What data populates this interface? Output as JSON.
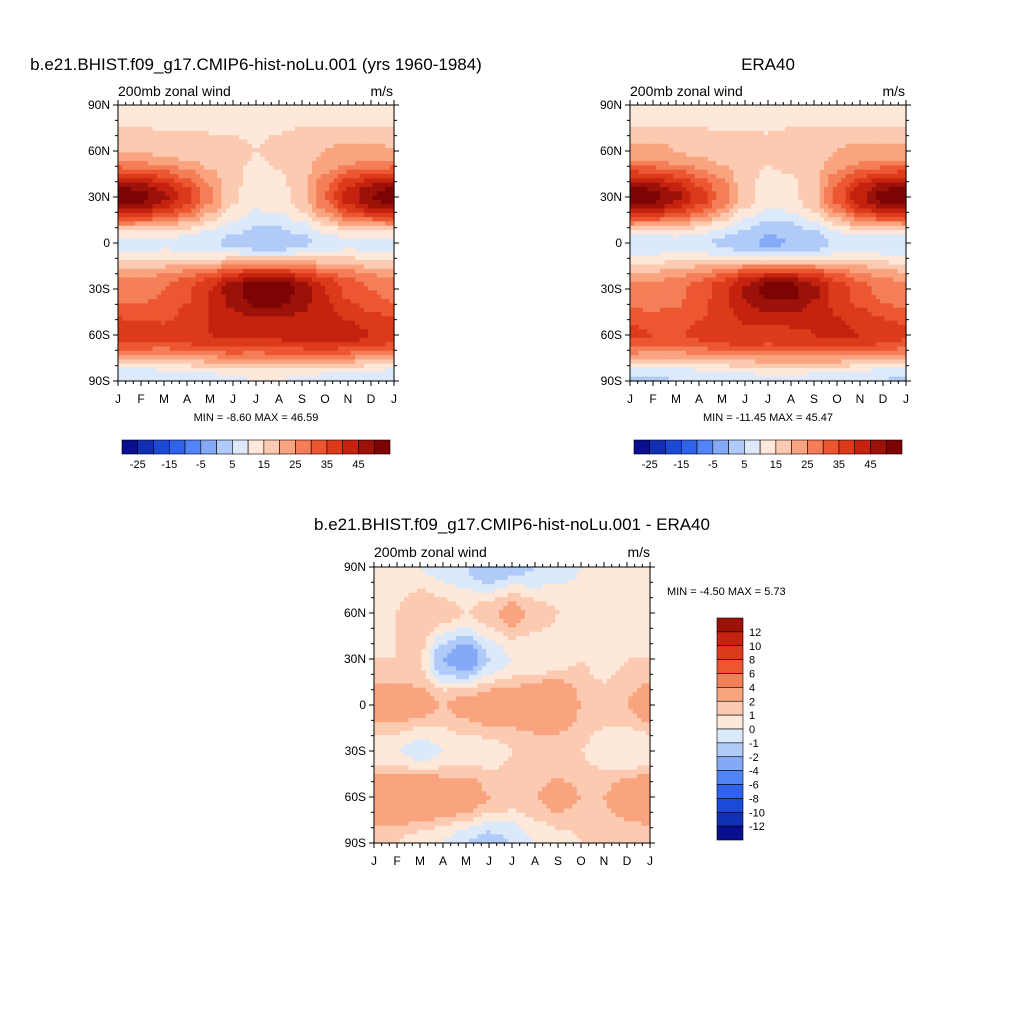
{
  "palettes": {
    "fields": [
      "#0a0f8f",
      "#1230b4",
      "#1c49d6",
      "#2f63ee",
      "#5384f6",
      "#84aaf7",
      "#b1cbf9",
      "#dce9fb",
      "#fde8da",
      "#fccab0",
      "#f9a47f",
      "#f47e57",
      "#ec5732",
      "#dd3a1c",
      "#c5230f",
      "#9c1208",
      "#7c0404"
    ],
    "diff": [
      "#0a0f8f",
      "#1230b4",
      "#1c49d6",
      "#2f63ee",
      "#5384f6",
      "#84aaf7",
      "#b1cbf9",
      "#dce9fb",
      "#fde8da",
      "#fccab0",
      "#f9a47f",
      "#f47e57",
      "#ec5732",
      "#dd3a1c",
      "#c5230f",
      "#9c1208"
    ]
  },
  "panels": [
    {
      "id": "model",
      "title": "b.e21.BHIST.f09_g17.CMIP6-hist-noLu.001 (yrs 1960-1984)",
      "left_label": "200mb zonal wind",
      "right_label": "m/s",
      "stats": "MIN =  -8.60 MAX =  46.59",
      "colorbar_labels": [
        "-25",
        "-15",
        "-5",
        "5",
        "15",
        "25",
        "35",
        "45"
      ]
    },
    {
      "id": "era40",
      "title": "ERA40",
      "left_label": "200mb zonal wind",
      "right_label": "m/s",
      "stats": "MIN = -11.45 MAX =  45.47",
      "colorbar_labels": [
        "-25",
        "-15",
        "-5",
        "5",
        "15",
        "25",
        "35",
        "45"
      ]
    },
    {
      "id": "diff",
      "title": "b.e21.BHIST.f09_g17.CMIP6-hist-noLu.001 - ERA40",
      "left_label": "200mb zonal wind",
      "right_label": "m/s",
      "stats": "MIN =  -4.50 MAX =   5.73",
      "colorbar_labels": [
        "12",
        "10",
        "8",
        "6",
        "4",
        "2",
        "1",
        "0",
        "-1",
        "-2",
        "-4",
        "-6",
        "-8",
        "-10",
        "-12"
      ]
    }
  ],
  "chart_data": [
    {
      "type": "heatmap",
      "title": "b.e21.BHIST.f09_g17.CMIP6-hist-noLu.001 (yrs 1960-1984)",
      "xlabel": "",
      "ylabel": "",
      "x_ticks": [
        "J",
        "F",
        "M",
        "A",
        "M",
        "J",
        "J",
        "A",
        "S",
        "O",
        "N",
        "D",
        "J"
      ],
      "y_ticks": [
        "90N",
        "60N",
        "30N",
        "0",
        "30S",
        "60S",
        "90S"
      ],
      "units": "m/s",
      "x": [
        "Jan",
        "Feb",
        "Mar",
        "Apr",
        "May",
        "Jun",
        "Jul",
        "Aug",
        "Sep",
        "Oct",
        "Nov",
        "Dec",
        "Jan"
      ],
      "y": [
        90,
        60,
        30,
        0,
        -30,
        -60,
        -90
      ],
      "z": [
        [
          0,
          0,
          0,
          1,
          1,
          2,
          3,
          3,
          2,
          1,
          1,
          0,
          0
        ],
        [
          10,
          10,
          9,
          8,
          7,
          6,
          5,
          6,
          8,
          10,
          11,
          11,
          10
        ],
        [
          44,
          42,
          36,
          27,
          16,
          6,
          2,
          3,
          8,
          20,
          32,
          40,
          44
        ],
        [
          -2,
          -2,
          -1,
          -2,
          -4,
          -6,
          -8,
          -8,
          -6,
          -3,
          -1,
          -2,
          -2
        ],
        [
          18,
          18,
          20,
          24,
          30,
          38,
          45,
          44,
          38,
          30,
          24,
          20,
          18
        ],
        [
          28,
          27,
          26,
          28,
          30,
          31,
          30,
          31,
          32,
          33,
          32,
          30,
          28
        ],
        [
          -5,
          -5,
          -4,
          -3,
          -2,
          -1,
          0,
          0,
          -1,
          -2,
          -3,
          -4,
          -5
        ]
      ],
      "levels": [
        -35,
        -30,
        -25,
        -20,
        -15,
        -10,
        -5,
        0,
        5,
        10,
        15,
        20,
        25,
        30,
        35,
        40,
        45
      ]
    },
    {
      "type": "heatmap",
      "title": "ERA40",
      "xlabel": "",
      "ylabel": "",
      "x_ticks": [
        "J",
        "F",
        "M",
        "A",
        "M",
        "J",
        "J",
        "A",
        "S",
        "O",
        "N",
        "D",
        "J"
      ],
      "y_ticks": [
        "90N",
        "60N",
        "30N",
        "0",
        "30S",
        "60S",
        "90S"
      ],
      "units": "m/s",
      "x": [
        "Jan",
        "Feb",
        "Mar",
        "Apr",
        "May",
        "Jun",
        "Jul",
        "Aug",
        "Sep",
        "Oct",
        "Nov",
        "Dec",
        "Jan"
      ],
      "y": [
        90,
        60,
        30,
        0,
        -30,
        -60,
        -90
      ],
      "z": [
        [
          0,
          0,
          0,
          1,
          1,
          2,
          3,
          3,
          2,
          1,
          1,
          0,
          0
        ],
        [
          11,
          11,
          10,
          9,
          8,
          7,
          6,
          7,
          8,
          10,
          11,
          11,
          11
        ],
        [
          44,
          42,
          36,
          28,
          18,
          7,
          2,
          3,
          9,
          22,
          34,
          42,
          44
        ],
        [
          -3,
          -3,
          -2,
          -3,
          -6,
          -8,
          -11,
          -10,
          -8,
          -4,
          -2,
          -3,
          -3
        ],
        [
          16,
          16,
          18,
          22,
          28,
          36,
          42,
          42,
          36,
          28,
          22,
          18,
          16
        ],
        [
          26,
          25,
          24,
          26,
          28,
          29,
          28,
          29,
          30,
          31,
          30,
          28,
          26
        ],
        [
          -6,
          -6,
          -5,
          -4,
          -3,
          -2,
          -1,
          -1,
          -2,
          -3,
          -4,
          -5,
          -6
        ]
      ],
      "levels": [
        -35,
        -30,
        -25,
        -20,
        -15,
        -10,
        -5,
        0,
        5,
        10,
        15,
        20,
        25,
        30,
        35,
        40,
        45
      ]
    },
    {
      "type": "heatmap",
      "title": "b.e21.BHIST.f09_g17.CMIP6-hist-noLu.001 - ERA40",
      "xlabel": "",
      "ylabel": "",
      "x_ticks": [
        "J",
        "F",
        "M",
        "A",
        "M",
        "J",
        "J",
        "A",
        "S",
        "O",
        "N",
        "D",
        "J"
      ],
      "y_ticks": [
        "90N",
        "60N",
        "30N",
        "0",
        "30S",
        "60S",
        "90S"
      ],
      "units": "m/s",
      "x": [
        "Jan",
        "Feb",
        "Mar",
        "Apr",
        "May",
        "Jun",
        "Jul",
        "Aug",
        "Sep",
        "Oct",
        "Nov",
        "Dec",
        "Jan"
      ],
      "y": [
        90,
        60,
        30,
        0,
        -30,
        -60,
        -90
      ],
      "z": [
        [
          0,
          0,
          0,
          -0.5,
          -1,
          -2,
          -1.5,
          -1,
          -0.5,
          0,
          0,
          0,
          0
        ],
        [
          0.5,
          1,
          2,
          1.5,
          1,
          1.5,
          2.5,
          1.5,
          1,
          0.5,
          0.5,
          1,
          0.5
        ],
        [
          1,
          1,
          1,
          -2,
          -3,
          -1,
          0,
          0,
          0.5,
          1,
          0.5,
          1,
          1
        ],
        [
          3,
          3,
          2.5,
          2,
          2.5,
          3,
          3,
          4,
          4,
          2,
          1.5,
          2,
          3
        ],
        [
          0,
          0,
          -0.5,
          0,
          0.5,
          0.5,
          1,
          1,
          1,
          1,
          0.5,
          0,
          0
        ],
        [
          4,
          4,
          4,
          3.5,
          3,
          2,
          1.5,
          2,
          2.5,
          2,
          2,
          3,
          4
        ],
        [
          1,
          1,
          0.5,
          0,
          -1,
          -1.5,
          -1,
          0,
          0.5,
          1,
          1,
          1,
          1
        ]
      ],
      "levels": [
        -12,
        -10,
        -8,
        -6,
        -4,
        -2,
        -1,
        0,
        1,
        2,
        4,
        6,
        8,
        10,
        12
      ]
    }
  ]
}
